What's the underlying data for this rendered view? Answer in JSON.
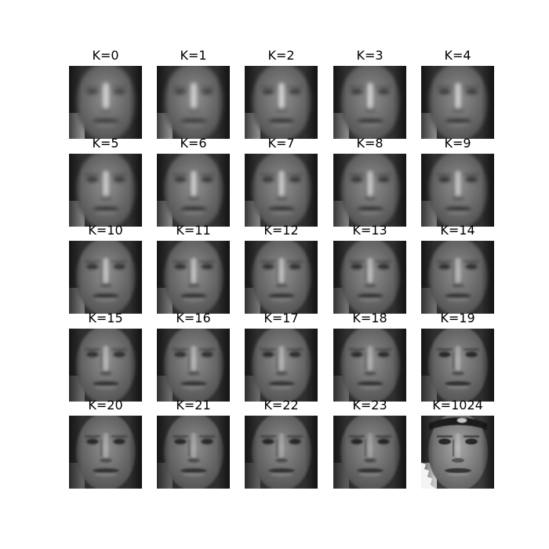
{
  "figure": {
    "panels": [
      {
        "label": "K=0"
      },
      {
        "label": "K=1"
      },
      {
        "label": "K=2"
      },
      {
        "label": "K=3"
      },
      {
        "label": "K=4"
      },
      {
        "label": "K=5"
      },
      {
        "label": "K=6"
      },
      {
        "label": "K=7"
      },
      {
        "label": "K=8"
      },
      {
        "label": "K=9"
      },
      {
        "label": "K=10"
      },
      {
        "label": "K=11"
      },
      {
        "label": "K=12"
      },
      {
        "label": "K=13"
      },
      {
        "label": "K=14"
      },
      {
        "label": "K=15"
      },
      {
        "label": "K=16"
      },
      {
        "label": "K=17"
      },
      {
        "label": "K=18"
      },
      {
        "label": "K=19"
      },
      {
        "label": "K=20"
      },
      {
        "label": "K=21"
      },
      {
        "label": "K=22"
      },
      {
        "label": "K=23"
      },
      {
        "label": "K=1024"
      }
    ]
  }
}
